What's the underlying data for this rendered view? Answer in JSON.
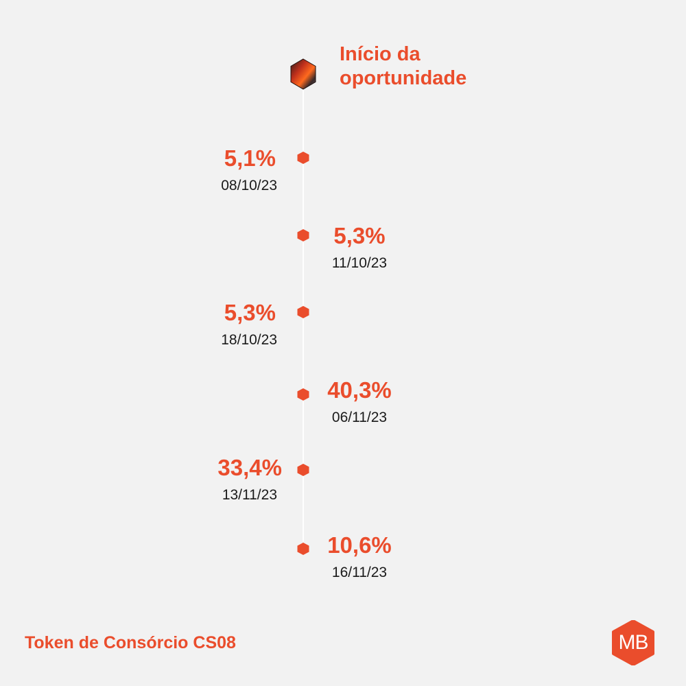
{
  "start": {
    "title_line1": "Início da",
    "title_line2": "oportunidade"
  },
  "entries": [
    {
      "percent": "5,1%",
      "date": "08/10/23",
      "side": "left"
    },
    {
      "percent": "5,3%",
      "date": "11/10/23",
      "side": "right"
    },
    {
      "percent": "5,3%",
      "date": "18/10/23",
      "side": "left"
    },
    {
      "percent": "40,3%",
      "date": "06/11/23",
      "side": "right"
    },
    {
      "percent": "33,4%",
      "date": "13/11/23",
      "side": "left"
    },
    {
      "percent": "10,6%",
      "date": "16/11/23",
      "side": "right"
    }
  ],
  "footer": {
    "title": "Token de Consórcio CS08",
    "logo_text": "MB"
  },
  "colors": {
    "accent": "#ea4d2c",
    "background": "#f2f2f2",
    "text": "#1a1a1a",
    "line": "#ffffff"
  },
  "icons": {
    "start": "hexagon-gradient-icon",
    "marker": "hexagon-dot-icon",
    "logo": "mb-hexagon-logo"
  }
}
